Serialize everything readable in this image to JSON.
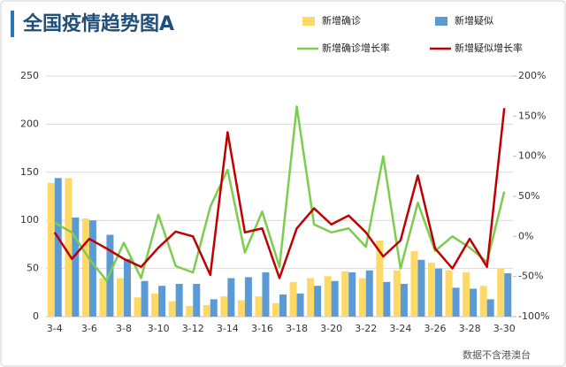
{
  "chart_data": {
    "type": "bar_line",
    "title": "全国疫情趋势图A",
    "source": "数据不含港澳台",
    "categories": [
      "3-4",
      null,
      "3-6",
      null,
      "3-8",
      null,
      "3-10",
      null,
      "3-12",
      null,
      "3-14",
      null,
      "3-16",
      null,
      "3-18",
      null,
      "3-20",
      null,
      "3-22",
      null,
      "3-24",
      null,
      "3-26",
      null,
      "3-28",
      null,
      "3-30"
    ],
    "series": [
      {
        "name": "新增确诊",
        "kind": "bar",
        "color": "#ffd966",
        "values": [
          139,
          144,
          102,
          40,
          40,
          20,
          24,
          16,
          11,
          12,
          21,
          17,
          21,
          14,
          36,
          40,
          42,
          47,
          40,
          79,
          48,
          68,
          56,
          48,
          46,
          32,
          50
        ]
      },
      {
        "name": "新增疑似",
        "kind": "bar",
        "color": "#5b9bd5",
        "values": [
          144,
          103,
          100,
          85,
          60,
          37,
          32,
          34,
          34,
          18,
          40,
          41,
          46,
          23,
          24,
          32,
          37,
          46,
          48,
          36,
          34,
          59,
          50,
          30,
          29,
          18,
          45
        ]
      },
      {
        "name": "新增确诊增长率",
        "kind": "line",
        "axis": "y2",
        "color": "#7ccd4e",
        "values": [
          17,
          5,
          -28,
          -55,
          -8,
          -52,
          27,
          -37,
          -45,
          37,
          83,
          -20,
          31,
          -38,
          162,
          15,
          5,
          10,
          -13,
          100,
          -40,
          42,
          -18,
          0,
          -14,
          -32,
          56
        ]
      },
      {
        "name": "新增疑似增长率",
        "kind": "line",
        "axis": "y2",
        "color": "#c00000",
        "values": [
          5,
          -28,
          -3,
          -15,
          -28,
          -38,
          -14,
          6,
          0,
          -48,
          130,
          5,
          10,
          -52,
          10,
          35,
          15,
          26,
          5,
          -25,
          -5,
          76,
          -15,
          -40,
          -3,
          -38,
          160
        ]
      }
    ],
    "ylim": [
      0,
      250
    ],
    "yticks": [
      0,
      50,
      100,
      150,
      200,
      250
    ],
    "y2lim": [
      -100,
      200
    ],
    "y2ticks": [
      {
        "value": -100,
        "label": "-100%"
      },
      {
        "value": -50,
        "label": "-50%"
      },
      {
        "value": 0,
        "label": "0%"
      },
      {
        "value": 50,
        "label": "50%"
      },
      {
        "value": 100,
        "label": "100%"
      },
      {
        "value": 150,
        "label": "150%"
      },
      {
        "value": 200,
        "label": "200%"
      }
    ],
    "grid": true
  }
}
